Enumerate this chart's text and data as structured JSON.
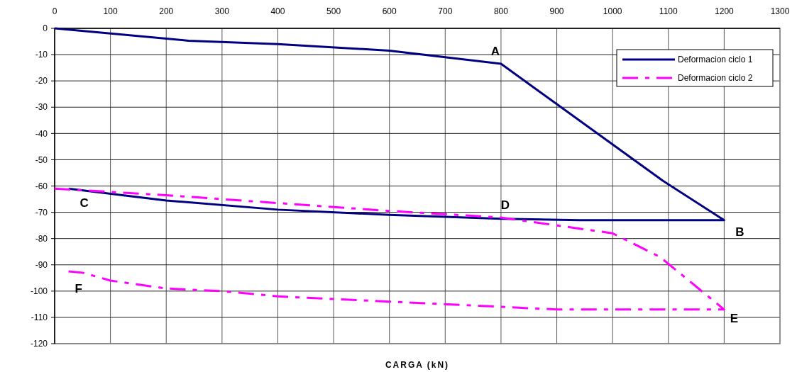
{
  "chart_data": {
    "type": "line",
    "xlabel": "CARGA (kN)",
    "xlim": [
      0,
      1300
    ],
    "xticks": [
      0,
      100,
      200,
      300,
      400,
      500,
      600,
      700,
      800,
      900,
      1000,
      1100,
      1200,
      1300
    ],
    "ylim": [
      -120,
      0
    ],
    "yticks": [
      -120,
      -110,
      -100,
      -90,
      -80,
      -70,
      -60,
      -50,
      -40,
      -30,
      -20,
      -10,
      0
    ],
    "grid": true,
    "legend": "top right",
    "marker": "none",
    "series": [
      {
        "name": "Deformacion ciclo 1",
        "color": "#000080",
        "line_style": "solid",
        "x": [
          0,
          240,
          400,
          600,
          800,
          1090,
          1200,
          940,
          800,
          600,
          400,
          200,
          25
        ],
        "values": [
          0,
          -4.7,
          -6,
          -8.5,
          -13.5,
          -58,
          -73,
          -73,
          -72.5,
          -71,
          -69,
          -65.5,
          -61
        ]
      },
      {
        "name": "Deformacion ciclo 2",
        "color": "#ff00ff",
        "line_style": "dashed",
        "x": [
          0,
          200,
          300,
          400,
          600,
          800,
          1000,
          1085,
          1200,
          1100,
          900,
          600,
          400,
          300,
          200,
          100,
          50,
          25
        ],
        "values": [
          -61,
          -63.5,
          -65,
          -66.5,
          -69.5,
          -72,
          -78,
          -87,
          -107,
          -107,
          -107,
          -104,
          -102,
          -100,
          -99,
          -96,
          -93,
          -92.5
        ]
      }
    ],
    "annotations": [
      {
        "text": "A",
        "x": 800,
        "y": -13.5
      },
      {
        "text": "B",
        "x": 1200,
        "y": -73
      },
      {
        "text": "C",
        "x": 25,
        "y": -61
      },
      {
        "text": "D",
        "x": 800,
        "y": -72
      },
      {
        "text": "E",
        "x": 1200,
        "y": -107
      },
      {
        "text": "F",
        "x": 25,
        "y": -92.5
      }
    ]
  }
}
